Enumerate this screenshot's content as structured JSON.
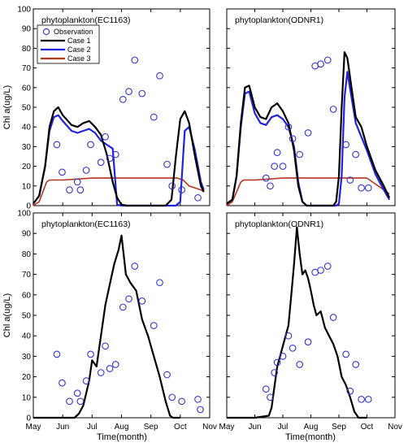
{
  "figure": {
    "xlabel": "Time(month)",
    "ylabel": "Chl a(ug/L)",
    "legend": {
      "entries": [
        {
          "label": "Observation",
          "kind": "marker",
          "color": "#3333cc"
        },
        {
          "label": "Case 1",
          "kind": "line",
          "color": "#000000"
        },
        {
          "label": "Case 2",
          "kind": "line",
          "color": "#2222dd"
        },
        {
          "label": "Case 3",
          "kind": "line",
          "color": "#b5341e"
        }
      ]
    }
  },
  "chart_data": [
    {
      "type": "line",
      "panel": "top-left",
      "title": "phytoplankton(EC1163)",
      "xlim": [
        "May",
        "Nov"
      ],
      "x_ticks": [
        "May",
        "Jun",
        "Jul",
        "Aug",
        "Sep",
        "Oct",
        "Nov"
      ],
      "ylim": [
        0,
        100
      ],
      "y_ticks": [
        0,
        10,
        20,
        30,
        40,
        50,
        60,
        70,
        80,
        90,
        100
      ],
      "legend_position": "top-left",
      "series": [
        {
          "name": "Case 1",
          "color": "#000000",
          "x": [
            0.0,
            0.2,
            0.4,
            0.55,
            0.7,
            0.85,
            1.0,
            1.3,
            1.5,
            1.7,
            1.9,
            2.1,
            2.3,
            2.5,
            2.7,
            2.85,
            3.0,
            3.2,
            3.5,
            4.0,
            4.5,
            4.7,
            4.85,
            5.0,
            5.15,
            5.3,
            5.5,
            5.7,
            5.8
          ],
          "y": [
            1,
            5,
            20,
            40,
            48,
            50,
            46,
            41,
            40,
            42,
            43,
            40,
            36,
            26,
            12,
            4,
            0.5,
            0,
            0,
            0,
            0,
            3,
            25,
            44,
            48,
            42,
            25,
            10,
            7
          ]
        },
        {
          "name": "Case 2",
          "color": "#2222dd",
          "x": [
            0.0,
            0.2,
            0.4,
            0.55,
            0.7,
            0.85,
            1.0,
            1.3,
            1.5,
            1.7,
            1.9,
            2.1,
            2.3,
            2.5,
            2.7,
            2.85,
            3.0,
            3.2,
            3.5,
            4.0,
            4.5,
            4.7,
            4.85,
            5.0,
            5.15,
            5.3,
            5.5,
            5.7,
            5.8
          ],
          "y": [
            1,
            5,
            20,
            38,
            45,
            46,
            43,
            38,
            37,
            38,
            39,
            37,
            33,
            31,
            29,
            0.5,
            0,
            0,
            0,
            0,
            0,
            0,
            0,
            2,
            38,
            40,
            28,
            12,
            8
          ]
        },
        {
          "name": "Case 3",
          "color": "#b5341e",
          "x": [
            0.0,
            0.2,
            0.35,
            0.45,
            0.55,
            1.0,
            2.0,
            3.0,
            4.0,
            4.5,
            4.9,
            5.1,
            5.3,
            5.5,
            5.7,
            5.8
          ],
          "y": [
            0,
            2,
            8,
            12,
            13,
            13,
            14,
            14,
            14,
            14,
            14,
            13,
            10,
            9,
            8,
            7
          ]
        }
      ],
      "observations": {
        "name": "Observation",
        "color": "#3333cc",
        "x": [
          0.8,
          0.98,
          1.23,
          1.5,
          1.6,
          1.8,
          1.95,
          2.3,
          2.45,
          2.6,
          2.8,
          3.05,
          3.25,
          3.45,
          3.7,
          4.1,
          4.3,
          4.55,
          4.72,
          5.05,
          5.6
        ],
        "y": [
          31,
          17,
          8,
          12,
          8,
          18,
          31,
          22,
          35,
          24,
          26,
          54,
          58,
          74,
          57,
          45,
          66,
          21,
          10,
          8,
          4
        ]
      }
    },
    {
      "type": "line",
      "panel": "top-right",
      "title": "phytoplankton(ODNR1)",
      "xlim": [
        "May",
        "Nov"
      ],
      "x_ticks": [
        "May",
        "Jun",
        "Jul",
        "Aug",
        "Sep",
        "Oct",
        "Nov"
      ],
      "ylim": [
        0,
        100
      ],
      "y_ticks": [
        0,
        10,
        20,
        30,
        40,
        50,
        60,
        70,
        80,
        90,
        100
      ],
      "series": [
        {
          "name": "Case 1",
          "color": "#000000",
          "x": [
            0.0,
            0.2,
            0.35,
            0.5,
            0.65,
            0.8,
            1.0,
            1.2,
            1.4,
            1.6,
            1.8,
            2.0,
            2.2,
            2.4,
            2.55,
            2.7,
            2.85,
            3.0,
            3.3,
            3.8,
            3.9,
            4.0,
            4.1,
            4.2,
            4.3,
            4.45,
            4.6,
            4.8,
            5.0,
            5.3,
            5.6,
            5.8
          ],
          "y": [
            1,
            3,
            15,
            42,
            60,
            61,
            50,
            45,
            44,
            50,
            52,
            48,
            42,
            28,
            10,
            2,
            0,
            0,
            0,
            0,
            2,
            15,
            50,
            78,
            75,
            60,
            45,
            40,
            30,
            18,
            10,
            4
          ]
        },
        {
          "name": "Case 2",
          "color": "#2222dd",
          "x": [
            0.0,
            0.2,
            0.35,
            0.5,
            0.65,
            0.8,
            1.0,
            1.2,
            1.4,
            1.6,
            1.8,
            2.0,
            2.2,
            2.4,
            2.55,
            2.7,
            2.85,
            3.0,
            3.3,
            3.8,
            3.9,
            4.0,
            4.1,
            4.2,
            4.3,
            4.45,
            4.6,
            4.8,
            5.0,
            5.3,
            5.6,
            5.8
          ],
          "y": [
            1,
            3,
            15,
            40,
            57,
            58,
            47,
            42,
            41,
            45,
            46,
            44,
            40,
            30,
            12,
            2,
            0,
            0,
            0,
            0,
            0,
            1,
            15,
            55,
            68,
            55,
            42,
            35,
            28,
            16,
            8,
            3
          ]
        },
        {
          "name": "Case 3",
          "color": "#b5341e",
          "x": [
            0.0,
            0.2,
            0.35,
            0.5,
            0.6,
            1.0,
            2.0,
            3.0,
            4.0,
            4.5,
            5.0,
            5.3,
            5.6,
            5.8
          ],
          "y": [
            0,
            2,
            7,
            12,
            13,
            13,
            14,
            14,
            14,
            14,
            14,
            11,
            8,
            6
          ]
        }
      ],
      "observations": {
        "name": "Observation",
        "color": "#3333cc",
        "x": [
          1.4,
          1.55,
          1.7,
          1.8,
          2.0,
          2.2,
          2.35,
          2.6,
          2.9,
          3.15,
          3.35,
          3.6,
          3.8,
          4.25,
          4.4,
          4.6,
          4.8,
          5.05
        ],
        "y": [
          14,
          10,
          20,
          27,
          20,
          40,
          34,
          26,
          37,
          71,
          72,
          74,
          49,
          31,
          13,
          26,
          9,
          9
        ]
      }
    },
    {
      "type": "line",
      "panel": "bottom-left",
      "title": "phytoplankton(EC1163)",
      "xlim": [
        "May",
        "Nov"
      ],
      "x_ticks": [
        "May",
        "Jun",
        "Jul",
        "Aug",
        "Sep",
        "Oct",
        "Nov"
      ],
      "ylim": [
        0,
        100
      ],
      "y_ticks": [
        0,
        10,
        20,
        30,
        40,
        50,
        60,
        70,
        80,
        90,
        100
      ],
      "series": [
        {
          "name": "Case 1",
          "color": "#000000",
          "x": [
            0.0,
            0.8,
            1.4,
            1.55,
            1.7,
            1.8,
            1.9,
            2.0,
            2.15,
            2.3,
            2.45,
            2.6,
            2.75,
            2.9,
            3.0,
            3.15,
            3.3,
            3.5,
            3.7,
            3.9,
            4.1,
            4.3,
            4.5,
            4.65,
            4.75,
            5.0
          ],
          "y": [
            0,
            0,
            0,
            2,
            6,
            12,
            18,
            28,
            25,
            40,
            55,
            65,
            75,
            82,
            89,
            70,
            66,
            62,
            48,
            40,
            30,
            20,
            8,
            1,
            0,
            0
          ]
        }
      ],
      "observations": {
        "name": "Observation",
        "color": "#3333cc",
        "x": [
          0.8,
          0.98,
          1.23,
          1.5,
          1.6,
          1.8,
          1.95,
          2.3,
          2.45,
          2.6,
          2.8,
          3.05,
          3.25,
          3.45,
          3.7,
          4.1,
          4.3,
          4.55,
          4.72,
          5.05,
          5.6,
          5.68
        ],
        "y": [
          31,
          17,
          8,
          12,
          8,
          18,
          31,
          22,
          35,
          24,
          26,
          54,
          58,
          74,
          57,
          45,
          66,
          21,
          10,
          8,
          9,
          4
        ]
      }
    },
    {
      "type": "line",
      "panel": "bottom-right",
      "title": "phytoplankton(ODNR1)",
      "xlim": [
        "May",
        "Nov"
      ],
      "x_ticks": [
        "May",
        "Jun",
        "Jul",
        "Aug",
        "Sep",
        "Oct",
        "Nov"
      ],
      "ylim": [
        0,
        100
      ],
      "y_ticks": [
        0,
        10,
        20,
        30,
        40,
        50,
        60,
        70,
        80,
        90,
        100
      ],
      "series": [
        {
          "name": "Case 1",
          "color": "#000000",
          "x": [
            0.0,
            1.0,
            1.5,
            1.6,
            1.7,
            1.8,
            1.9,
            2.0,
            2.1,
            2.2,
            2.3,
            2.4,
            2.5,
            2.6,
            2.7,
            2.8,
            2.9,
            3.0,
            3.1,
            3.2,
            3.35,
            3.5,
            3.65,
            3.8,
            3.95,
            4.1,
            4.25,
            4.4,
            4.55,
            4.7,
            5.0
          ],
          "y": [
            0,
            0,
            1,
            5,
            15,
            25,
            30,
            35,
            40,
            45,
            60,
            75,
            93,
            80,
            70,
            72,
            68,
            62,
            55,
            50,
            52,
            44,
            40,
            36,
            30,
            20,
            16,
            10,
            3,
            0,
            0
          ]
        }
      ],
      "observations": {
        "name": "Observation",
        "color": "#3333cc",
        "x": [
          1.4,
          1.55,
          1.7,
          1.8,
          2.0,
          2.2,
          2.35,
          2.6,
          2.9,
          3.15,
          3.35,
          3.6,
          3.8,
          4.25,
          4.4,
          4.6,
          4.8,
          5.05
        ],
        "y": [
          14,
          10,
          22,
          27,
          30,
          40,
          34,
          26,
          37,
          71,
          72,
          74,
          49,
          31,
          13,
          26,
          9,
          9
        ]
      }
    }
  ]
}
